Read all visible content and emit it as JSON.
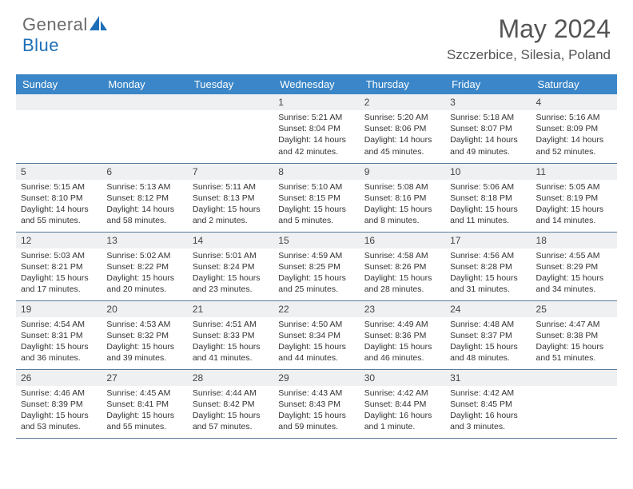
{
  "brand": {
    "name_part1": "General",
    "name_part2": "Blue"
  },
  "title": "May 2024",
  "location": "Szczerbice, Silesia, Poland",
  "colors": {
    "header_bg": "#3a86c8",
    "header_text": "#ffffff",
    "daynum_bg": "#eef0f2",
    "text": "#333333",
    "rule": "#5a7a9a",
    "logo_accent": "#1d6fb8"
  },
  "day_headers": [
    "Sunday",
    "Monday",
    "Tuesday",
    "Wednesday",
    "Thursday",
    "Friday",
    "Saturday"
  ],
  "weeks": [
    [
      {
        "n": "",
        "sunrise": "",
        "sunset": "",
        "daylight": ""
      },
      {
        "n": "",
        "sunrise": "",
        "sunset": "",
        "daylight": ""
      },
      {
        "n": "",
        "sunrise": "",
        "sunset": "",
        "daylight": ""
      },
      {
        "n": "1",
        "sunrise": "Sunrise: 5:21 AM",
        "sunset": "Sunset: 8:04 PM",
        "daylight": "Daylight: 14 hours and 42 minutes."
      },
      {
        "n": "2",
        "sunrise": "Sunrise: 5:20 AM",
        "sunset": "Sunset: 8:06 PM",
        "daylight": "Daylight: 14 hours and 45 minutes."
      },
      {
        "n": "3",
        "sunrise": "Sunrise: 5:18 AM",
        "sunset": "Sunset: 8:07 PM",
        "daylight": "Daylight: 14 hours and 49 minutes."
      },
      {
        "n": "4",
        "sunrise": "Sunrise: 5:16 AM",
        "sunset": "Sunset: 8:09 PM",
        "daylight": "Daylight: 14 hours and 52 minutes."
      }
    ],
    [
      {
        "n": "5",
        "sunrise": "Sunrise: 5:15 AM",
        "sunset": "Sunset: 8:10 PM",
        "daylight": "Daylight: 14 hours and 55 minutes."
      },
      {
        "n": "6",
        "sunrise": "Sunrise: 5:13 AM",
        "sunset": "Sunset: 8:12 PM",
        "daylight": "Daylight: 14 hours and 58 minutes."
      },
      {
        "n": "7",
        "sunrise": "Sunrise: 5:11 AM",
        "sunset": "Sunset: 8:13 PM",
        "daylight": "Daylight: 15 hours and 2 minutes."
      },
      {
        "n": "8",
        "sunrise": "Sunrise: 5:10 AM",
        "sunset": "Sunset: 8:15 PM",
        "daylight": "Daylight: 15 hours and 5 minutes."
      },
      {
        "n": "9",
        "sunrise": "Sunrise: 5:08 AM",
        "sunset": "Sunset: 8:16 PM",
        "daylight": "Daylight: 15 hours and 8 minutes."
      },
      {
        "n": "10",
        "sunrise": "Sunrise: 5:06 AM",
        "sunset": "Sunset: 8:18 PM",
        "daylight": "Daylight: 15 hours and 11 minutes."
      },
      {
        "n": "11",
        "sunrise": "Sunrise: 5:05 AM",
        "sunset": "Sunset: 8:19 PM",
        "daylight": "Daylight: 15 hours and 14 minutes."
      }
    ],
    [
      {
        "n": "12",
        "sunrise": "Sunrise: 5:03 AM",
        "sunset": "Sunset: 8:21 PM",
        "daylight": "Daylight: 15 hours and 17 minutes."
      },
      {
        "n": "13",
        "sunrise": "Sunrise: 5:02 AM",
        "sunset": "Sunset: 8:22 PM",
        "daylight": "Daylight: 15 hours and 20 minutes."
      },
      {
        "n": "14",
        "sunrise": "Sunrise: 5:01 AM",
        "sunset": "Sunset: 8:24 PM",
        "daylight": "Daylight: 15 hours and 23 minutes."
      },
      {
        "n": "15",
        "sunrise": "Sunrise: 4:59 AM",
        "sunset": "Sunset: 8:25 PM",
        "daylight": "Daylight: 15 hours and 25 minutes."
      },
      {
        "n": "16",
        "sunrise": "Sunrise: 4:58 AM",
        "sunset": "Sunset: 8:26 PM",
        "daylight": "Daylight: 15 hours and 28 minutes."
      },
      {
        "n": "17",
        "sunrise": "Sunrise: 4:56 AM",
        "sunset": "Sunset: 8:28 PM",
        "daylight": "Daylight: 15 hours and 31 minutes."
      },
      {
        "n": "18",
        "sunrise": "Sunrise: 4:55 AM",
        "sunset": "Sunset: 8:29 PM",
        "daylight": "Daylight: 15 hours and 34 minutes."
      }
    ],
    [
      {
        "n": "19",
        "sunrise": "Sunrise: 4:54 AM",
        "sunset": "Sunset: 8:31 PM",
        "daylight": "Daylight: 15 hours and 36 minutes."
      },
      {
        "n": "20",
        "sunrise": "Sunrise: 4:53 AM",
        "sunset": "Sunset: 8:32 PM",
        "daylight": "Daylight: 15 hours and 39 minutes."
      },
      {
        "n": "21",
        "sunrise": "Sunrise: 4:51 AM",
        "sunset": "Sunset: 8:33 PM",
        "daylight": "Daylight: 15 hours and 41 minutes."
      },
      {
        "n": "22",
        "sunrise": "Sunrise: 4:50 AM",
        "sunset": "Sunset: 8:34 PM",
        "daylight": "Daylight: 15 hours and 44 minutes."
      },
      {
        "n": "23",
        "sunrise": "Sunrise: 4:49 AM",
        "sunset": "Sunset: 8:36 PM",
        "daylight": "Daylight: 15 hours and 46 minutes."
      },
      {
        "n": "24",
        "sunrise": "Sunrise: 4:48 AM",
        "sunset": "Sunset: 8:37 PM",
        "daylight": "Daylight: 15 hours and 48 minutes."
      },
      {
        "n": "25",
        "sunrise": "Sunrise: 4:47 AM",
        "sunset": "Sunset: 8:38 PM",
        "daylight": "Daylight: 15 hours and 51 minutes."
      }
    ],
    [
      {
        "n": "26",
        "sunrise": "Sunrise: 4:46 AM",
        "sunset": "Sunset: 8:39 PM",
        "daylight": "Daylight: 15 hours and 53 minutes."
      },
      {
        "n": "27",
        "sunrise": "Sunrise: 4:45 AM",
        "sunset": "Sunset: 8:41 PM",
        "daylight": "Daylight: 15 hours and 55 minutes."
      },
      {
        "n": "28",
        "sunrise": "Sunrise: 4:44 AM",
        "sunset": "Sunset: 8:42 PM",
        "daylight": "Daylight: 15 hours and 57 minutes."
      },
      {
        "n": "29",
        "sunrise": "Sunrise: 4:43 AM",
        "sunset": "Sunset: 8:43 PM",
        "daylight": "Daylight: 15 hours and 59 minutes."
      },
      {
        "n": "30",
        "sunrise": "Sunrise: 4:42 AM",
        "sunset": "Sunset: 8:44 PM",
        "daylight": "Daylight: 16 hours and 1 minute."
      },
      {
        "n": "31",
        "sunrise": "Sunrise: 4:42 AM",
        "sunset": "Sunset: 8:45 PM",
        "daylight": "Daylight: 16 hours and 3 minutes."
      },
      {
        "n": "",
        "sunrise": "",
        "sunset": "",
        "daylight": ""
      }
    ]
  ]
}
